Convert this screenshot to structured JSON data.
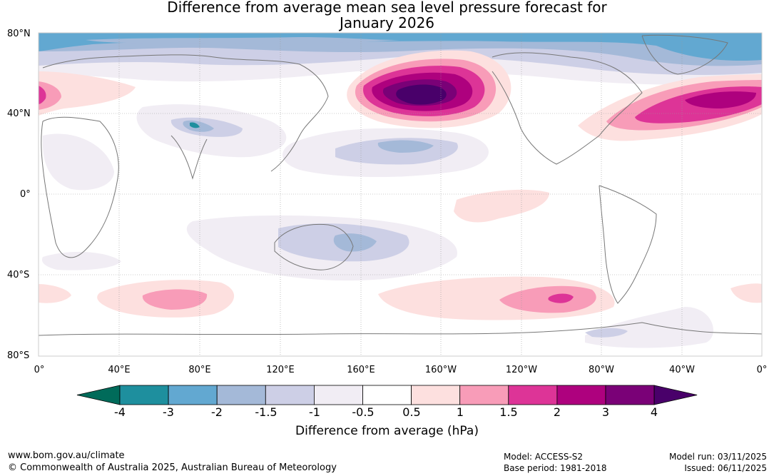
{
  "title": {
    "line1": "Difference from average mean sea level pressure forecast for",
    "line2": "January 2026"
  },
  "map": {
    "lat_labels": [
      "80°N",
      "40°N",
      "0°",
      "40°S",
      "80°S"
    ],
    "lon_labels": [
      "0°",
      "40°E",
      "80°E",
      "120°E",
      "160°E",
      "160°W",
      "120°W",
      "80°W",
      "40°W",
      "0°"
    ],
    "colorbar": {
      "labels": [
        "-4",
        "-3",
        "-2",
        "-1.5",
        "-1",
        "-0.5",
        "0.5",
        "1",
        "1.5",
        "2",
        "3",
        "4"
      ],
      "colors": [
        "#006b5a",
        "#1e8f9e",
        "#62a8d1",
        "#a4b9d8",
        "#cdcfe6",
        "#f1edf4",
        "#ffffff",
        "#fde0df",
        "#f89cb8",
        "#dd3497",
        "#ae017e",
        "#7a0177",
        "#49006a"
      ],
      "title": "Difference from average (hPa)"
    }
  },
  "footer": {
    "website": "www.bom.gov.au/climate",
    "copyright": "© Commonwealth of Australia 2025, Australian Bureau of Meteorology",
    "model": "Model: ACCESS-S2",
    "base_period": "Base period: 1981-2018",
    "model_run": "Model run: 03/11/2025",
    "issued": "Issued: 06/11/2025"
  }
}
